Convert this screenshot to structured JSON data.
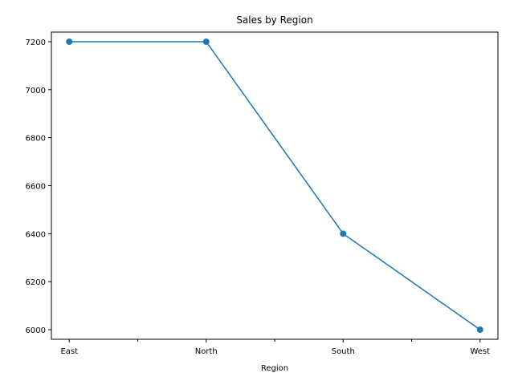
{
  "chart_data": {
    "type": "line",
    "title": "Sales by Region",
    "xlabel": "Region",
    "ylabel": "",
    "categories": [
      "East",
      "North",
      "South",
      "West"
    ],
    "series": [
      {
        "values": [
          7200,
          7200,
          6400,
          6000
        ],
        "color": "#1f77b4",
        "marker": "circle"
      }
    ],
    "ylim": [
      5960,
      7240
    ],
    "yticks": [
      6000,
      6200,
      6400,
      6600,
      6800,
      7000,
      7200
    ],
    "minor_xticks_between_categories": true,
    "grid": false,
    "legend": "none"
  }
}
